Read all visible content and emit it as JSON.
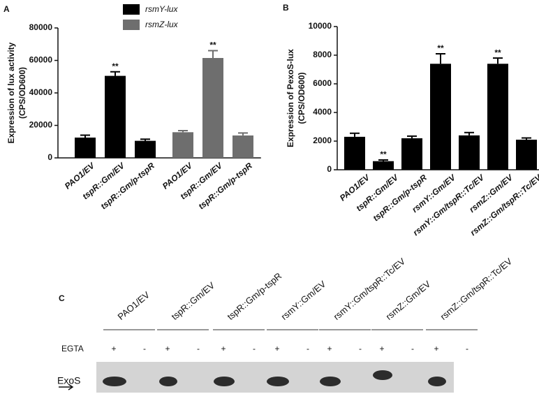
{
  "chart_data": [
    {
      "type": "bar",
      "panel": "A",
      "y_label": [
        "Expression of lux activity",
        "(CPS/OD600)"
      ],
      "categories": [
        "PAO1/EV",
        "tspR::Gm/EV",
        "tspR::Gm/p-tspR",
        "PAO1/EV",
        "tspR::Gm/EV",
        "tspR::Gm/p-tspR"
      ],
      "series": [
        {
          "name": "rsmY-lux",
          "color": "#000000",
          "values": [
            12500,
            50500,
            10500,
            null,
            null,
            null
          ],
          "errors": [
            1500,
            2500,
            1000,
            null,
            null,
            null
          ],
          "value_labels": [
            null,
            "**",
            null,
            null,
            null,
            null
          ]
        },
        {
          "name": "rsmZ-lux",
          "color": "#6e6e6e",
          "values": [
            null,
            null,
            null,
            15800,
            61500,
            13800
          ],
          "errors": [
            null,
            null,
            null,
            1000,
            4500,
            1500
          ],
          "value_labels": [
            null,
            null,
            null,
            null,
            "**",
            null
          ]
        }
      ],
      "ylim": [
        0,
        80000
      ],
      "yticks": [
        0,
        20000,
        40000,
        60000,
        80000
      ]
    },
    {
      "type": "bar",
      "panel": "B",
      "y_label": [
        "Expression of PexoS-lux",
        "(CPS/OD600)"
      ],
      "categories": [
        "PAO1/EV",
        "tspR::Gm/EV",
        "tspR::Gm/p-tspR",
        "rsmY::Gm/EV",
        "rsmY::Gm/tspR::Tc/EV",
        "rsmZ::Gm/EV",
        "rsmZ::Gm/tspR::Tc/EV"
      ],
      "series": [
        {
          "color": "#000000",
          "values": [
            2300,
            600,
            2200,
            7400,
            2400,
            7400,
            2100
          ],
          "errors": [
            250,
            80,
            150,
            700,
            200,
            400,
            120
          ],
          "value_labels": [
            null,
            "**",
            null,
            "**",
            null,
            "**",
            null
          ]
        }
      ],
      "ylim": [
        0,
        10000
      ],
      "yticks": [
        0,
        2000,
        4000,
        6000,
        8000,
        10000
      ]
    }
  ],
  "blot": {
    "panel": "C",
    "treatment_label": "EGTA",
    "band_label": "ExoS",
    "lanes": [
      {
        "label": "PAO1/EV",
        "signs": [
          "+",
          "-"
        ]
      },
      {
        "label": "tspR::Gm/EV",
        "signs": [
          "+",
          "-"
        ]
      },
      {
        "label": "tspR::Gm/p-tspR",
        "signs": [
          "+",
          "-"
        ]
      },
      {
        "label": "rsmY::Gm/EV",
        "signs": [
          "+",
          "-"
        ]
      },
      {
        "label": "rsmY::Gm/tspR::Tc/EV",
        "signs": [
          "+",
          "-"
        ]
      },
      {
        "label": "rsmZ::Gm/EV",
        "signs": [
          "+",
          "-"
        ]
      },
      {
        "label": "rsmZ::Gm/tspR::Tc/EV",
        "signs": [
          "+",
          "-"
        ]
      }
    ]
  }
}
